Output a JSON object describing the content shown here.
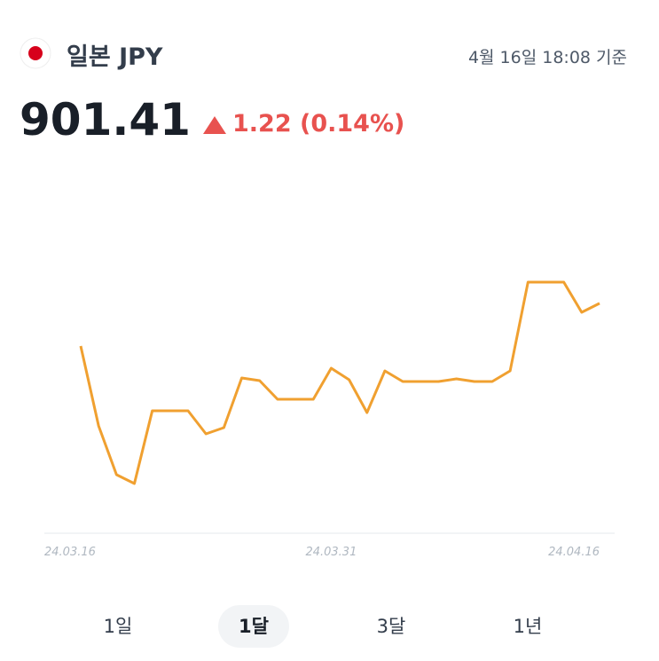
{
  "header": {
    "title": "일본 JPY",
    "timestamp": "4월 16일 18:08 기준",
    "price": "901.41",
    "change": "1.22 (0.14%)"
  },
  "chart_data": {
    "type": "line",
    "categories": [
      "24.03.16",
      null,
      null,
      null,
      null,
      null,
      null,
      null,
      null,
      null,
      null,
      null,
      null,
      null,
      "24.03.31",
      null,
      null,
      null,
      null,
      null,
      null,
      null,
      null,
      null,
      null,
      null,
      null,
      null,
      null,
      "24.04.16"
    ],
    "values": [
      896.6,
      887.6,
      882.1,
      881.1,
      889.3,
      889.3,
      889.3,
      886.7,
      887.4,
      893.0,
      892.7,
      890.6,
      890.6,
      890.6,
      894.1,
      892.8,
      889.1,
      893.8,
      892.6,
      892.6,
      892.6,
      892.9,
      892.6,
      892.6,
      893.8,
      903.8,
      903.8,
      903.8,
      900.4,
      901.41
    ],
    "color": "#f0a030",
    "ylim": [
      878,
      906
    ]
  },
  "tabs": {
    "items": [
      "1일",
      "1달",
      "3달",
      "1년"
    ],
    "selected": 1
  }
}
